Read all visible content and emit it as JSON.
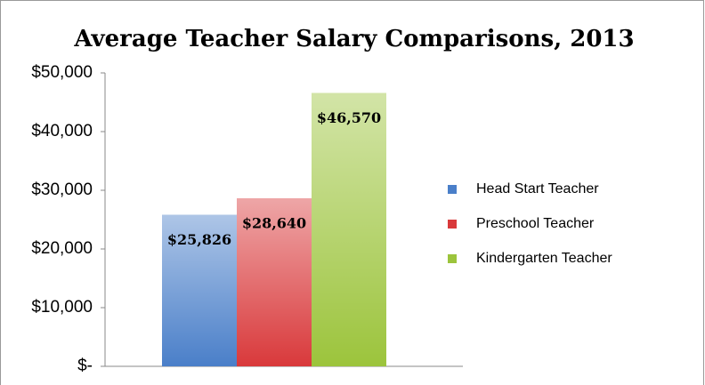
{
  "chart_data": {
    "type": "bar",
    "title": "Average Teacher Salary Comparisons, 2013",
    "categories": [
      null
    ],
    "series": [
      {
        "name": "Head Start Teacher",
        "color": "#4a7fc9",
        "values": [
          25826
        ],
        "value_labels": [
          "$25,826"
        ]
      },
      {
        "name": "Preschool Teacher",
        "color": "#d9393b",
        "values": [
          28640
        ],
        "value_labels": [
          "$28,640"
        ]
      },
      {
        "name": "Kindergarten Teacher",
        "color": "#9cc43c",
        "values": [
          46570
        ],
        "value_labels": [
          "$46,570"
        ]
      }
    ],
    "ylim": [
      0,
      50000
    ],
    "yticks": [
      {
        "value": 0,
        "label": "$-"
      },
      {
        "value": 10000,
        "label": "$10,000"
      },
      {
        "value": 20000,
        "label": "$20,000"
      },
      {
        "value": 30000,
        "label": "$30,000"
      },
      {
        "value": 40000,
        "label": "$40,000"
      },
      {
        "value": 50000,
        "label": "$50,000"
      }
    ],
    "legend": "right"
  }
}
